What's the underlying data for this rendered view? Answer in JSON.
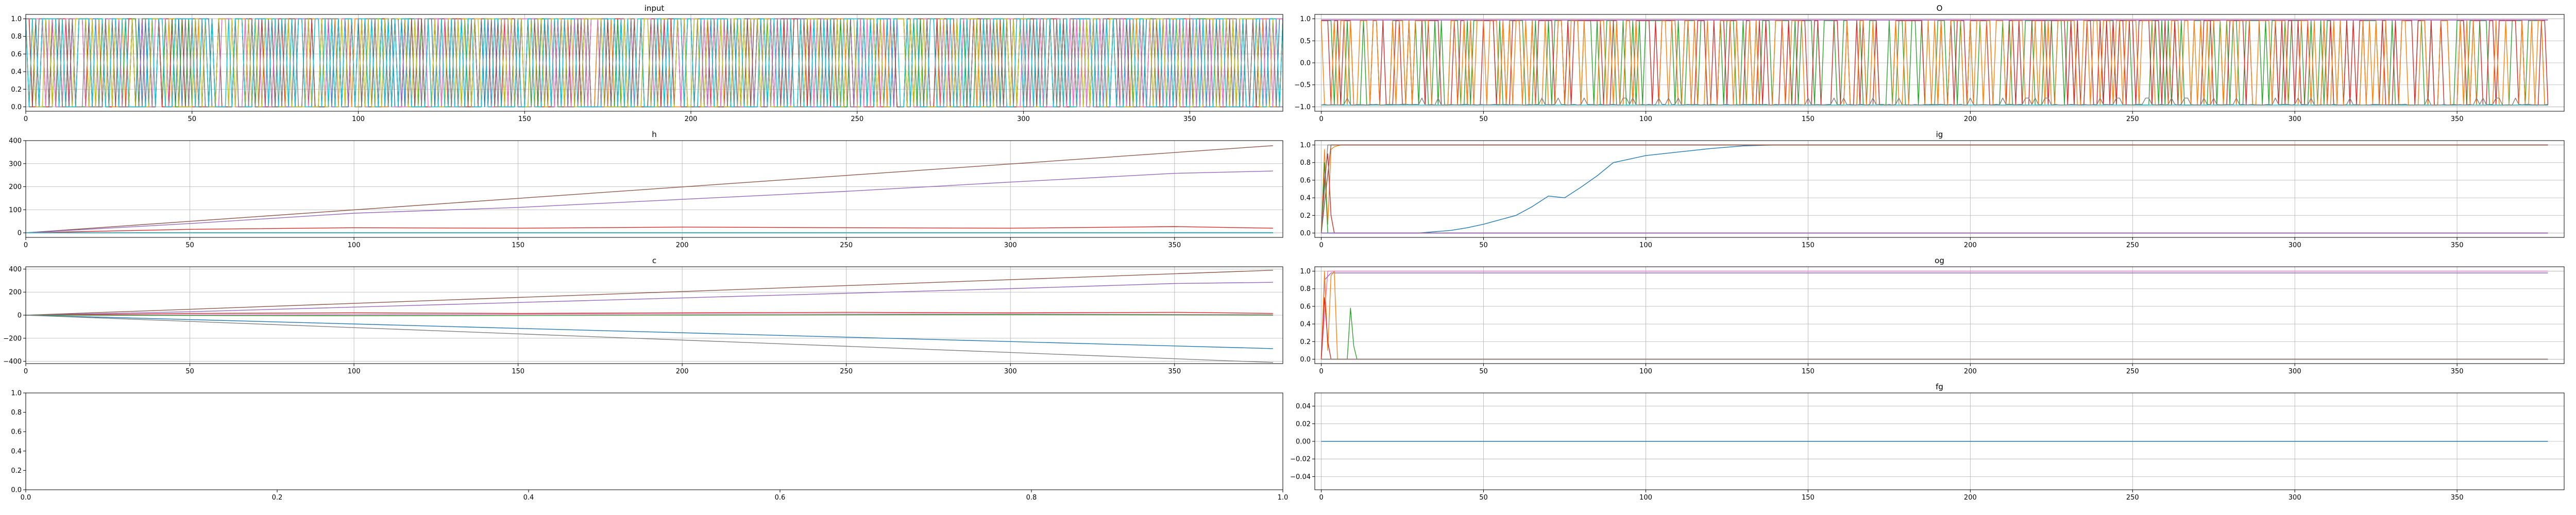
{
  "figure": {
    "background": "#ffffff",
    "grid_color": "#b0b0b0"
  },
  "chart_data": [
    {
      "id": "input",
      "type": "line",
      "title": "input",
      "grid": true,
      "xlim": [
        0,
        378
      ],
      "ylim": [
        -0.05,
        1.05
      ],
      "xticks": [
        0,
        50,
        100,
        150,
        200,
        250,
        300,
        350
      ],
      "yticks": [
        0.0,
        0.2,
        0.4,
        0.6,
        0.8,
        1.0
      ],
      "ytick_labels": [
        "0.0",
        "0.2",
        "0.4",
        "0.6",
        "0.8",
        "1.0"
      ],
      "series_count": 10,
      "pattern": "binary_toggle",
      "x_range": [
        0,
        378
      ],
      "series_colors": [
        "#1f77b4",
        "#ff7f0e",
        "#2ca02c",
        "#d62728",
        "#9467bd",
        "#8c564b",
        "#e377c2",
        "#7f7f7f",
        "#bcbd22",
        "#17becf"
      ]
    },
    {
      "id": "o",
      "type": "line",
      "title": "O",
      "grid": true,
      "xlim": [
        -2,
        383
      ],
      "ylim": [
        -1.1,
        1.1
      ],
      "xticks": [
        0,
        50,
        100,
        150,
        200,
        250,
        300,
        350
      ],
      "yticks": [
        -1.0,
        -0.5,
        0.0,
        0.5,
        1.0
      ],
      "ytick_labels": [
        "−1.0",
        "−0.5",
        "0.0",
        "0.5",
        "1.0"
      ],
      "series": [
        {
          "color": "#2ca02c",
          "pattern": "binary_toggle",
          "x_range": [
            0,
            378
          ],
          "low": -0.96,
          "high": 0.96
        },
        {
          "color": "#d62728",
          "pattern": "binary_toggle",
          "x_range": [
            0,
            378
          ],
          "low": -0.96,
          "high": 0.96
        },
        {
          "color": "#ff7f0e",
          "pattern": "binary_toggle",
          "x_range": [
            0,
            378
          ],
          "low": -0.96,
          "high": 0.96
        },
        {
          "color": "#17becf",
          "pattern": "constant",
          "x": [
            0,
            378
          ],
          "y": [
            -0.96,
            -0.96
          ]
        },
        {
          "color": "#7f7f7f",
          "pattern": "spiky",
          "x_range": [
            0,
            378
          ],
          "base": -0.95,
          "spike": -0.8
        },
        {
          "color": "#e377c2",
          "pattern": "constant",
          "x": [
            0,
            378
          ],
          "y": [
            0.98,
            0.98
          ]
        },
        {
          "color": "#9467bd",
          "pattern": "constant",
          "x": [
            0,
            378
          ],
          "y": [
            0.97,
            0.97
          ]
        }
      ]
    },
    {
      "id": "h",
      "type": "line",
      "title": "h",
      "grid": true,
      "xlim": [
        0,
        383
      ],
      "ylim": [
        -20,
        400
      ],
      "xticks": [
        0,
        50,
        100,
        150,
        200,
        250,
        300,
        350
      ],
      "yticks": [
        0,
        100,
        200,
        300,
        400
      ],
      "ytick_labels": [
        "0",
        "100",
        "200",
        "300",
        "400"
      ],
      "series": [
        {
          "color": "#8c564b",
          "x": [
            0,
            380
          ],
          "y": [
            0,
            378
          ]
        },
        {
          "color": "#9467bd",
          "x": [
            0,
            50,
            100,
            150,
            200,
            250,
            300,
            350,
            380
          ],
          "y": [
            0,
            40,
            85,
            110,
            145,
            180,
            220,
            258,
            268
          ]
        },
        {
          "color": "#d62728",
          "x": [
            0,
            50,
            100,
            150,
            200,
            250,
            300,
            350,
            380
          ],
          "y": [
            0,
            15,
            22,
            20,
            25,
            22,
            20,
            27,
            20
          ]
        },
        {
          "color": "#1f77b4",
          "x": [
            0,
            380
          ],
          "y": [
            0,
            1
          ]
        },
        {
          "color": "#2ca02c",
          "x": [
            0,
            380
          ],
          "y": [
            0,
            0
          ]
        },
        {
          "color": "#ff7f0e",
          "x": [
            0,
            380
          ],
          "y": [
            0,
            0
          ]
        },
        {
          "color": "#7f7f7f",
          "x": [
            0,
            380
          ],
          "y": [
            0,
            0
          ]
        },
        {
          "color": "#e377c2",
          "x": [
            0,
            380
          ],
          "y": [
            0,
            0
          ]
        },
        {
          "color": "#17becf",
          "x": [
            0,
            380
          ],
          "y": [
            0,
            0
          ]
        }
      ]
    },
    {
      "id": "ig",
      "type": "line",
      "title": "ig",
      "grid": true,
      "xlim": [
        -2,
        383
      ],
      "ylim": [
        -0.05,
        1.05
      ],
      "xticks": [
        0,
        50,
        100,
        150,
        200,
        250,
        300,
        350
      ],
      "yticks": [
        0.0,
        0.2,
        0.4,
        0.6,
        0.8,
        1.0
      ],
      "ytick_labels": [
        "0.0",
        "0.2",
        "0.4",
        "0.6",
        "0.8",
        "1.0"
      ],
      "series": [
        {
          "color": "#1f77b4",
          "x": [
            0,
            30,
            40,
            45,
            50,
            55,
            60,
            65,
            70,
            75,
            80,
            85,
            90,
            95,
            100,
            110,
            120,
            130,
            140,
            150,
            378
          ],
          "y": [
            0,
            0,
            0.03,
            0.06,
            0.1,
            0.15,
            0.2,
            0.3,
            0.42,
            0.4,
            0.52,
            0.65,
            0.8,
            0.84,
            0.88,
            0.92,
            0.96,
            0.99,
            1.0,
            1.0,
            1.0
          ]
        },
        {
          "color": "#ff7f0e",
          "x": [
            0,
            1,
            2,
            3,
            4,
            6,
            378
          ],
          "y": [
            0,
            0.95,
            0.1,
            0.95,
            0.98,
            1.0,
            1.0
          ]
        },
        {
          "color": "#2ca02c",
          "x": [
            0,
            1,
            2,
            4,
            378
          ],
          "y": [
            0,
            0.8,
            0.0,
            0,
            0
          ]
        },
        {
          "color": "#d62728",
          "x": [
            0,
            1,
            2,
            3,
            4,
            378
          ],
          "y": [
            0,
            0.6,
            0.9,
            0.2,
            0,
            0
          ]
        },
        {
          "color": "#7f7f7f",
          "x": [
            0,
            2,
            378
          ],
          "y": [
            0,
            1.0,
            1.0
          ]
        },
        {
          "color": "#8c564b",
          "x": [
            0,
            3,
            378
          ],
          "y": [
            0,
            1.0,
            1.0
          ]
        },
        {
          "color": "#9467bd",
          "x": [
            0,
            378
          ],
          "y": [
            0,
            0
          ]
        }
      ]
    },
    {
      "id": "c",
      "type": "line",
      "title": "c",
      "grid": true,
      "xlim": [
        0,
        383
      ],
      "ylim": [
        -420,
        420
      ],
      "xticks": [
        0,
        50,
        100,
        150,
        200,
        250,
        300,
        350
      ],
      "yticks": [
        -400,
        -200,
        0,
        200,
        400
      ],
      "ytick_labels": [
        "−400",
        "−200",
        "0",
        "200",
        "400"
      ],
      "series": [
        {
          "color": "#8c564b",
          "x": [
            0,
            380
          ],
          "y": [
            0,
            390
          ]
        },
        {
          "color": "#9467bd",
          "x": [
            0,
            50,
            100,
            150,
            200,
            250,
            300,
            350,
            380
          ],
          "y": [
            0,
            30,
            70,
            110,
            150,
            190,
            230,
            275,
            285
          ]
        },
        {
          "color": "#d62728",
          "x": [
            0,
            50,
            100,
            150,
            200,
            250,
            300,
            350,
            380
          ],
          "y": [
            0,
            15,
            20,
            15,
            20,
            25,
            20,
            25,
            15
          ]
        },
        {
          "color": "#e377c2",
          "x": [
            0,
            100,
            200,
            300,
            380
          ],
          "y": [
            0,
            5,
            10,
            10,
            5
          ]
        },
        {
          "color": "#2ca02c",
          "x": [
            0,
            100,
            200,
            300,
            380
          ],
          "y": [
            0,
            -5,
            0,
            5,
            0
          ]
        },
        {
          "color": "#1f77b4",
          "x": [
            0,
            380
          ],
          "y": [
            0,
            -290
          ]
        },
        {
          "color": "#7f7f7f",
          "x": [
            0,
            380
          ],
          "y": [
            0,
            -410
          ]
        }
      ]
    },
    {
      "id": "og",
      "type": "line",
      "title": "og",
      "grid": true,
      "xlim": [
        -2,
        383
      ],
      "ylim": [
        -0.05,
        1.05
      ],
      "xticks": [
        0,
        50,
        100,
        150,
        200,
        250,
        300,
        350
      ],
      "yticks": [
        0.0,
        0.2,
        0.4,
        0.6,
        0.8,
        1.0
      ],
      "ytick_labels": [
        "0.0",
        "0.2",
        "0.4",
        "0.6",
        "0.8",
        "1.0"
      ],
      "series": [
        {
          "color": "#e377c2",
          "x": [
            0,
            2,
            378
          ],
          "y": [
            0,
            1.0,
            1.0
          ]
        },
        {
          "color": "#9467bd",
          "x": [
            0,
            1,
            3,
            378
          ],
          "y": [
            0,
            0.9,
            0.98,
            0.98
          ]
        },
        {
          "color": "#ff7f0e",
          "x": [
            0,
            1,
            2,
            3,
            4,
            5,
            378
          ],
          "y": [
            0,
            1.0,
            0.1,
            0.95,
            1.0,
            0,
            0
          ]
        },
        {
          "color": "#2ca02c",
          "x": [
            0,
            8,
            9,
            10,
            11,
            378
          ],
          "y": [
            0,
            0,
            0.58,
            0.15,
            0,
            0
          ]
        },
        {
          "color": "#d62728",
          "x": [
            0,
            1,
            2,
            3,
            378
          ],
          "y": [
            0,
            0.7,
            0.2,
            0,
            0
          ]
        },
        {
          "color": "#7f7f7f",
          "x": [
            0,
            378
          ],
          "y": [
            0,
            0
          ]
        }
      ]
    },
    {
      "id": "empty",
      "type": "line",
      "title": "",
      "grid": false,
      "xlim": [
        0,
        1
      ],
      "ylim": [
        0,
        1
      ],
      "xticks": [
        0,
        0.2,
        0.4,
        0.6,
        0.8,
        1.0
      ],
      "xtick_labels": [
        "0.0",
        "0.2",
        "0.4",
        "0.6",
        "0.8",
        "1.0"
      ],
      "yticks": [
        0,
        0.2,
        0.4,
        0.6,
        0.8,
        1.0
      ],
      "ytick_labels": [
        "0.0",
        "0.2",
        "0.4",
        "0.6",
        "0.8",
        "1.0"
      ],
      "series": []
    },
    {
      "id": "fg",
      "type": "line",
      "title": "fg",
      "grid": true,
      "xlim": [
        -2,
        383
      ],
      "ylim": [
        -0.055,
        0.055
      ],
      "xticks": [
        0,
        50,
        100,
        150,
        200,
        250,
        300,
        350
      ],
      "yticks": [
        -0.04,
        -0.02,
        0.0,
        0.02,
        0.04
      ],
      "ytick_labels": [
        "−0.04",
        "−0.02",
        "0.00",
        "0.02",
        "0.04"
      ],
      "series": [
        {
          "color": "#1f77b4",
          "x": [
            0,
            378
          ],
          "y": [
            0,
            0
          ]
        }
      ]
    }
  ]
}
